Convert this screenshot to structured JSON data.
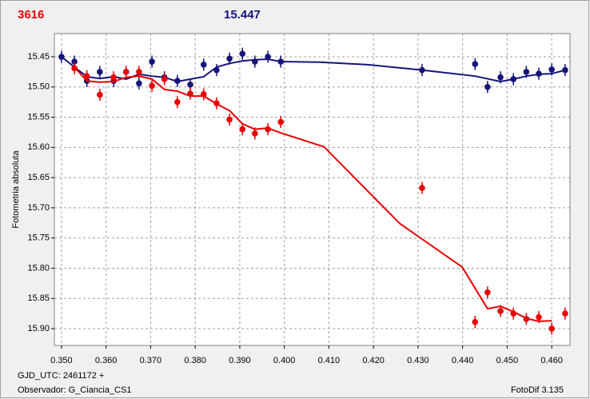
{
  "chart_data": {
    "type": "scatter",
    "label_left": "3616",
    "label_right": "15.447",
    "ylabel": "Fotometria absoluta",
    "xlabel": "GJD_UTC: 2461172 +",
    "observer": "Observador: G_Ciancia_CS1",
    "software": "FotoDif 3.135",
    "xlim": [
      0.3484,
      0.4641
    ],
    "ylim": [
      15.9278,
      15.4116
    ],
    "xticks": [
      {
        "value": 0.35,
        "label": "0.350"
      },
      {
        "value": 0.36,
        "label": "0.360"
      },
      {
        "value": 0.37,
        "label": "0.370"
      },
      {
        "value": 0.38,
        "label": "0.380"
      },
      {
        "value": 0.39,
        "label": "0.390"
      },
      {
        "value": 0.4,
        "label": "0.400"
      },
      {
        "value": 0.41,
        "label": "0.410"
      },
      {
        "value": 0.42,
        "label": "0.420"
      },
      {
        "value": 0.43,
        "label": "0.430"
      },
      {
        "value": 0.44,
        "label": "0.440"
      },
      {
        "value": 0.45,
        "label": "0.450"
      },
      {
        "value": 0.46,
        "label": "0.460"
      }
    ],
    "yticks": [
      15.45,
      {
        "value": 15.5,
        "label": "15.50"
      },
      15.55,
      {
        "value": 15.6,
        "label": "15.60"
      },
      15.65,
      {
        "value": 15.7,
        "label": "15.70"
      },
      15.75,
      {
        "value": 15.8,
        "label": "15.80"
      },
      15.85,
      {
        "value": 15.9,
        "label": "15.90"
      }
    ],
    "grid": true,
    "series": [
      {
        "color": "#14147a",
        "yerr": 0.01,
        "x": [
          0.35,
          0.3529,
          0.3557,
          0.3586,
          0.3617,
          0.3645,
          0.3674,
          0.3703,
          0.3731,
          0.376,
          0.3789,
          0.3819,
          0.3848,
          0.3877,
          0.3906,
          0.3934,
          0.3963,
          0.3992,
          0.4309,
          0.4428,
          0.4456,
          0.4485,
          0.4514,
          0.4543,
          0.4571,
          0.46,
          0.463
        ],
        "values": [
          15.45,
          15.458,
          15.49,
          15.475,
          15.49,
          15.475,
          15.494,
          15.458,
          15.484,
          15.49,
          15.496,
          15.463,
          15.472,
          15.453,
          15.445,
          15.458,
          15.45,
          15.458,
          15.472,
          15.462,
          15.5,
          15.484,
          15.487,
          15.475,
          15.478,
          15.471,
          15.472
        ],
        "fit_x": [
          0.35,
          0.3529,
          0.3557,
          0.3586,
          0.3617,
          0.3645,
          0.3674,
          0.3703,
          0.3731,
          0.376,
          0.3789,
          0.3819,
          0.3848,
          0.3877,
          0.3906,
          0.3934,
          0.3963,
          0.3992,
          0.408,
          0.4187,
          0.4309,
          0.4428,
          0.4485,
          0.4514,
          0.4543,
          0.4571,
          0.46,
          0.463
        ],
        "fit_values": [
          15.45,
          15.467,
          15.483,
          15.486,
          15.483,
          15.487,
          15.479,
          15.482,
          15.484,
          15.491,
          15.487,
          15.483,
          15.467,
          15.461,
          15.457,
          15.455,
          15.454,
          15.458,
          15.459,
          15.463,
          15.472,
          15.482,
          15.491,
          15.487,
          15.482,
          15.479,
          15.478,
          15.472
        ]
      },
      {
        "color": "#e80000",
        "yerr": 0.01,
        "x": [
          0.3529,
          0.3557,
          0.3586,
          0.3617,
          0.3645,
          0.3674,
          0.3703,
          0.3731,
          0.376,
          0.3789,
          0.3819,
          0.3848,
          0.3877,
          0.3906,
          0.3934,
          0.3963,
          0.3992,
          0.4309,
          0.4428,
          0.4456,
          0.4485,
          0.4514,
          0.4543,
          0.4571,
          0.46,
          0.463
        ],
        "values": [
          15.469,
          15.482,
          15.513,
          15.484,
          15.475,
          15.475,
          15.498,
          15.487,
          15.525,
          15.511,
          15.512,
          15.527,
          15.554,
          15.57,
          15.577,
          15.57,
          15.558,
          15.667,
          15.889,
          15.84,
          15.871,
          15.875,
          15.884,
          15.881,
          15.9,
          15.875
        ],
        "fit_x": [
          0.3529,
          0.3557,
          0.3586,
          0.3617,
          0.3645,
          0.3674,
          0.3703,
          0.3731,
          0.376,
          0.3789,
          0.3819,
          0.3848,
          0.3877,
          0.3906,
          0.3934,
          0.3963,
          0.3992,
          0.4089,
          0.4259,
          0.4399,
          0.4456,
          0.4485,
          0.4514,
          0.4543,
          0.4571,
          0.46
        ],
        "fit_values": [
          15.467,
          15.49,
          15.492,
          15.491,
          15.484,
          15.482,
          15.487,
          15.504,
          15.507,
          15.515,
          15.515,
          15.528,
          15.539,
          15.561,
          15.57,
          15.568,
          15.576,
          15.599,
          15.726,
          15.798,
          15.867,
          15.863,
          15.872,
          15.883,
          15.888,
          15.887
        ]
      }
    ]
  }
}
